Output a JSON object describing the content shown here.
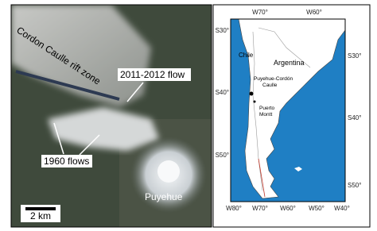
{
  "image_panel": {
    "rift_label": "Cordon Caulle rift zone",
    "flow_2011_label": "2011-2012 flow",
    "flow_1960_label": "1960 flows",
    "volcano_label": "Puyehue",
    "scale_bar_label": "2 km"
  },
  "map_panel": {
    "top_ticks": [
      "W70°",
      "W60°"
    ],
    "left_ticks": [
      "S30°",
      "S40°",
      "S50°"
    ],
    "right_ticks": [
      "S30°",
      "S40°",
      "S50°"
    ],
    "bottom_ticks": [
      "W80°",
      "W70°",
      "W60°",
      "W50°",
      "W40°"
    ],
    "country_labels": [
      "Chile",
      "Argentina"
    ],
    "site_label": [
      "Puyehue-Cordón",
      "Caulle"
    ],
    "city_label": [
      "Puerto",
      "Montt"
    ]
  }
}
